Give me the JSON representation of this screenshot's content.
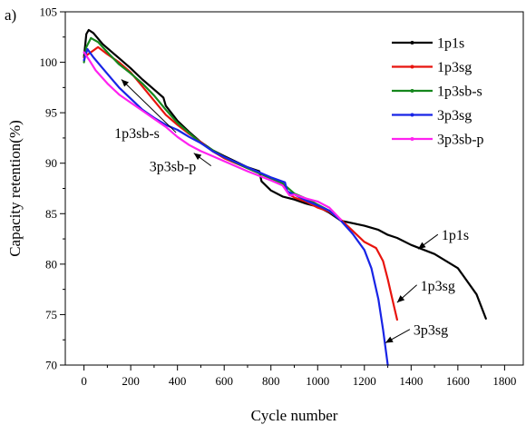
{
  "chart_data": {
    "type": "line",
    "panel_label": "a)",
    "xlabel": "Cycle number",
    "ylabel": "Capacity retention(%)",
    "xlim": [
      -80,
      1880
    ],
    "ylim": [
      70,
      105
    ],
    "xticks": [
      0,
      200,
      400,
      600,
      800,
      1000,
      1200,
      1400,
      1600,
      1800
    ],
    "yticks": [
      70,
      75,
      80,
      85,
      90,
      95,
      100,
      105
    ],
    "legend_position": "top-right",
    "series": [
      {
        "name": "1p1s",
        "color": "#000000",
        "points": [
          [
            0,
            100.5
          ],
          [
            10,
            102.8
          ],
          [
            20,
            103.2
          ],
          [
            40,
            102.9
          ],
          [
            80,
            101.8
          ],
          [
            150,
            100.4
          ],
          [
            200,
            99.4
          ],
          [
            250,
            98.3
          ],
          [
            300,
            97.3
          ],
          [
            340,
            96.5
          ],
          [
            350,
            95.7
          ],
          [
            400,
            94.2
          ],
          [
            450,
            93.1
          ],
          [
            500,
            92.1
          ],
          [
            550,
            91.3
          ],
          [
            600,
            90.7
          ],
          [
            700,
            89.6
          ],
          [
            750,
            89.2
          ],
          [
            760,
            88.2
          ],
          [
            800,
            87.3
          ],
          [
            850,
            86.7
          ],
          [
            900,
            86.4
          ],
          [
            950,
            86.0
          ],
          [
            1000,
            85.7
          ],
          [
            1050,
            85.1
          ],
          [
            1100,
            84.3
          ],
          [
            1200,
            83.8
          ],
          [
            1260,
            83.4
          ],
          [
            1300,
            82.9
          ],
          [
            1340,
            82.6
          ],
          [
            1400,
            81.9
          ],
          [
            1500,
            81.0
          ],
          [
            1600,
            79.6
          ],
          [
            1680,
            77.0
          ],
          [
            1720,
            74.6
          ]
        ]
      },
      {
        "name": "1p3sg",
        "color": "#e8140e",
        "points": [
          [
            0,
            100.5
          ],
          [
            30,
            101.0
          ],
          [
            60,
            101.5
          ],
          [
            100,
            100.8
          ],
          [
            150,
            100.0
          ],
          [
            200,
            99.0
          ],
          [
            250,
            97.6
          ],
          [
            300,
            96.2
          ],
          [
            350,
            94.8
          ],
          [
            400,
            93.8
          ],
          [
            450,
            92.9
          ],
          [
            500,
            92.1
          ],
          [
            550,
            91.2
          ],
          [
            600,
            90.5
          ],
          [
            700,
            89.5
          ],
          [
            800,
            88.5
          ],
          [
            850,
            88.0
          ],
          [
            880,
            86.9
          ],
          [
            900,
            86.6
          ],
          [
            950,
            86.2
          ],
          [
            1000,
            85.6
          ],
          [
            1050,
            85.2
          ],
          [
            1100,
            84.4
          ],
          [
            1150,
            83.3
          ],
          [
            1200,
            82.2
          ],
          [
            1250,
            81.6
          ],
          [
            1280,
            80.3
          ],
          [
            1300,
            78.5
          ],
          [
            1320,
            76.5
          ],
          [
            1340,
            74.5
          ]
        ]
      },
      {
        "name": "1p3sb-s",
        "color": "#15871d",
        "points": [
          [
            0,
            100.0
          ],
          [
            10,
            101.5
          ],
          [
            30,
            102.4
          ],
          [
            60,
            102.0
          ],
          [
            100,
            101.0
          ],
          [
            150,
            99.8
          ],
          [
            200,
            98.9
          ],
          [
            250,
            97.9
          ],
          [
            300,
            96.7
          ],
          [
            350,
            95.3
          ],
          [
            400,
            94.0
          ],
          [
            450,
            93.0
          ],
          [
            500,
            92.0
          ],
          [
            550,
            91.3
          ],
          [
            600,
            90.6
          ],
          [
            700,
            89.5
          ],
          [
            800,
            88.5
          ],
          [
            850,
            88.0
          ],
          [
            900,
            87.0
          ],
          [
            950,
            86.5
          ],
          [
            1000,
            85.9
          ],
          [
            1050,
            85.3
          ]
        ]
      },
      {
        "name": "3p3sg",
        "color": "#1824e6",
        "points": [
          [
            0,
            100.2
          ],
          [
            15,
            101.3
          ],
          [
            40,
            100.5
          ],
          [
            80,
            99.4
          ],
          [
            150,
            97.5
          ],
          [
            200,
            96.4
          ],
          [
            250,
            95.3
          ],
          [
            300,
            94.5
          ],
          [
            350,
            93.8
          ],
          [
            400,
            93.3
          ],
          [
            450,
            92.6
          ],
          [
            500,
            92.0
          ],
          [
            550,
            91.2
          ],
          [
            600,
            90.6
          ],
          [
            700,
            89.6
          ],
          [
            800,
            88.6
          ],
          [
            860,
            88.1
          ],
          [
            870,
            87.2
          ],
          [
            900,
            86.9
          ],
          [
            950,
            86.3
          ],
          [
            1000,
            85.8
          ],
          [
            1050,
            85.3
          ],
          [
            1100,
            84.3
          ],
          [
            1150,
            83.0
          ],
          [
            1200,
            81.4
          ],
          [
            1230,
            79.6
          ],
          [
            1260,
            76.5
          ],
          [
            1280,
            73.5
          ],
          [
            1300,
            70.0
          ]
        ]
      },
      {
        "name": "3p3sb-p",
        "color": "#ff22f0",
        "points": [
          [
            0,
            101.0
          ],
          [
            20,
            100.3
          ],
          [
            50,
            99.2
          ],
          [
            100,
            97.9
          ],
          [
            150,
            96.8
          ],
          [
            200,
            96.0
          ],
          [
            250,
            95.2
          ],
          [
            300,
            94.4
          ],
          [
            350,
            93.6
          ],
          [
            400,
            92.6
          ],
          [
            450,
            91.8
          ],
          [
            500,
            91.2
          ],
          [
            550,
            90.7
          ],
          [
            600,
            90.2
          ],
          [
            700,
            89.2
          ],
          [
            800,
            88.3
          ],
          [
            850,
            87.8
          ],
          [
            880,
            86.8
          ],
          [
            900,
            86.9
          ],
          [
            950,
            86.5
          ],
          [
            1000,
            86.2
          ],
          [
            1050,
            85.6
          ],
          [
            1100,
            84.4
          ]
        ]
      }
    ],
    "legend": [
      {
        "label": "1p1s",
        "color": "#000000"
      },
      {
        "label": "1p3sg",
        "color": "#e8140e"
      },
      {
        "label": "1p3sb-s",
        "color": "#15871d"
      },
      {
        "label": "3p3sg",
        "color": "#1824e6"
      },
      {
        "label": "3p3sb-p",
        "color": "#ff22f0"
      }
    ],
    "annotations": [
      {
        "text": "1p3sb-s",
        "x": 130,
        "y": 92.5,
        "target_x": 160,
        "target_y": 98.3
      },
      {
        "text": "3p3sb-p",
        "x": 280,
        "y": 89.2,
        "target_x": 470,
        "target_y": 91.0
      },
      {
        "text": "1p1s",
        "x": 1530,
        "y": 82.4,
        "target_x": 1430,
        "target_y": 81.5
      },
      {
        "text": "1p3sg",
        "x": 1440,
        "y": 77.4,
        "target_x": 1340,
        "target_y": 76.2
      },
      {
        "text": "3p3sg",
        "x": 1410,
        "y": 73.0,
        "target_x": 1290,
        "target_y": 72.2
      }
    ]
  }
}
